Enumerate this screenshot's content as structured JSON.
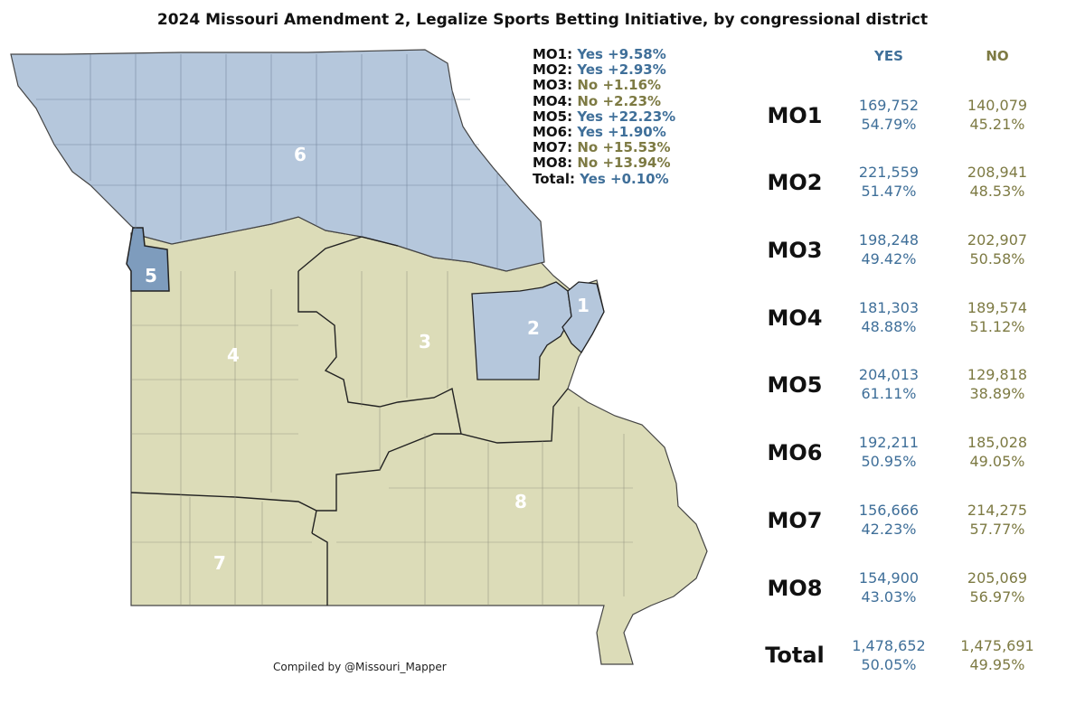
{
  "title": "2024 Missouri Amendment 2, Legalize Sports Betting Initiative, by congressional district",
  "colors": {
    "yes": "#3f6f99",
    "no": "#7d7a43",
    "yes_fill": "#b5c7dc",
    "yes_strong_fill": "#7e9cbd",
    "no_fill": "#dcdcb8"
  },
  "margins": [
    {
      "label": "MO1:",
      "text": "Yes +9.58%",
      "side": "yes"
    },
    {
      "label": "MO2:",
      "text": "Yes +2.93%",
      "side": "yes"
    },
    {
      "label": "MO3:",
      "text": "No +1.16%",
      "side": "no"
    },
    {
      "label": "MO4:",
      "text": "No +2.23%",
      "side": "no"
    },
    {
      "label": "MO5:",
      "text": "Yes +22.23%",
      "side": "yes"
    },
    {
      "label": "MO6:",
      "text": "Yes +1.90%",
      "side": "yes"
    },
    {
      "label": "MO7:",
      "text": "No +15.53%",
      "side": "no"
    },
    {
      "label": "MO8:",
      "text": "No +13.94%",
      "side": "no"
    },
    {
      "label": "Total:",
      "text": "Yes +0.10%",
      "side": "yes"
    }
  ],
  "table": {
    "yes_header": "YES",
    "no_header": "NO",
    "rows": [
      {
        "district": "MO1",
        "yes_votes": "169,752",
        "yes_pct": "54.79%",
        "no_votes": "140,079",
        "no_pct": "45.21%"
      },
      {
        "district": "MO2",
        "yes_votes": "221,559",
        "yes_pct": "51.47%",
        "no_votes": "208,941",
        "no_pct": "48.53%"
      },
      {
        "district": "MO3",
        "yes_votes": "198,248",
        "yes_pct": "49.42%",
        "no_votes": "202,907",
        "no_pct": "50.58%"
      },
      {
        "district": "MO4",
        "yes_votes": "181,303",
        "yes_pct": "48.88%",
        "no_votes": "189,574",
        "no_pct": "51.12%"
      },
      {
        "district": "MO5",
        "yes_votes": "204,013",
        "yes_pct": "61.11%",
        "no_votes": "129,818",
        "no_pct": "38.89%"
      },
      {
        "district": "MO6",
        "yes_votes": "192,211",
        "yes_pct": "50.95%",
        "no_votes": "185,028",
        "no_pct": "49.05%"
      },
      {
        "district": "MO7",
        "yes_votes": "156,666",
        "yes_pct": "42.23%",
        "no_votes": "214,275",
        "no_pct": "57.77%"
      },
      {
        "district": "MO8",
        "yes_votes": "154,900",
        "yes_pct": "43.03%",
        "no_votes": "205,069",
        "no_pct": "56.97%"
      },
      {
        "district": "Total",
        "yes_votes": "1,478,652",
        "yes_pct": "50.05%",
        "no_votes": "1,475,691",
        "no_pct": "49.95%"
      }
    ]
  },
  "map": {
    "districts": [
      {
        "number": "1",
        "winner": "yes"
      },
      {
        "number": "2",
        "winner": "yes"
      },
      {
        "number": "3",
        "winner": "no"
      },
      {
        "number": "4",
        "winner": "no"
      },
      {
        "number": "5",
        "winner": "yes-strong"
      },
      {
        "number": "6",
        "winner": "yes"
      },
      {
        "number": "7",
        "winner": "no"
      },
      {
        "number": "8",
        "winner": "no"
      }
    ]
  },
  "credit": "Compiled by @Missouri_Mapper"
}
